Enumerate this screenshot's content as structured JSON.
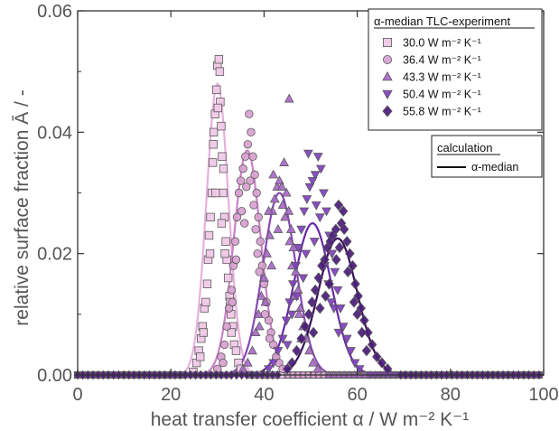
{
  "chart_data": {
    "type": "scatter",
    "title": "",
    "xlabel": "heat transfer coefficient α / W m⁻² K⁻¹",
    "ylabel": "relative surface fraction Ā / -",
    "xlim": [
      0,
      100
    ],
    "ylim": [
      0,
      0.06
    ],
    "x_ticks": [
      "0",
      "20",
      "40",
      "60",
      "80",
      "100"
    ],
    "y_ticks": [
      "0.00",
      "0.02",
      "0.04",
      "0.06"
    ],
    "grid": false,
    "legend_experiment": {
      "title": "α-median TLC-experiment",
      "placement": "top-right"
    },
    "legend_calculation": {
      "title": "calculation",
      "entry": "α-median",
      "placement": "right"
    },
    "series": [
      {
        "name": "30.0 W m⁻² K⁻¹",
        "marker": "square",
        "color": "#f0c8e6",
        "curve": {
          "mean": 30.0,
          "sigma": 2.35,
          "peak": 0.048,
          "color": "#e8b0dc"
        },
        "points": [
          [
            24.8,
            0.0005
          ],
          [
            25.5,
            0.002
          ],
          [
            26.0,
            0.004
          ],
          [
            26.5,
            0.006
          ],
          [
            26.8,
            0.008
          ],
          [
            27.2,
            0.011
          ],
          [
            27.5,
            0.012
          ],
          [
            27.8,
            0.015
          ],
          [
            28.0,
            0.019
          ],
          [
            28.2,
            0.023
          ],
          [
            28.5,
            0.026
          ],
          [
            28.8,
            0.03
          ],
          [
            29.0,
            0.035
          ],
          [
            29.2,
            0.04
          ],
          [
            29.5,
            0.043
          ],
          [
            29.8,
            0.047
          ],
          [
            30.0,
            0.051
          ],
          [
            30.3,
            0.052
          ],
          [
            30.5,
            0.05
          ],
          [
            30.6,
            0.045
          ],
          [
            30.8,
            0.041
          ],
          [
            31.0,
            0.036
          ],
          [
            31.2,
            0.03
          ],
          [
            31.5,
            0.026
          ],
          [
            31.8,
            0.022
          ],
          [
            32.0,
            0.019
          ],
          [
            32.3,
            0.016
          ],
          [
            32.6,
            0.013
          ],
          [
            32.9,
            0.01
          ],
          [
            33.3,
            0.008
          ],
          [
            33.6,
            0.005
          ],
          [
            34.0,
            0.004
          ],
          [
            34.5,
            0.002
          ],
          [
            35.0,
            0.001
          ],
          [
            28.4,
            0.02
          ],
          [
            29.6,
            0.03
          ],
          [
            30.9,
            0.025
          ],
          [
            27.0,
            0.007
          ],
          [
            31.6,
            0.02
          ],
          [
            32.8,
            0.012
          ],
          [
            26.3,
            0.003
          ],
          [
            29.1,
            0.038
          ],
          [
            30.1,
            0.044
          ],
          [
            31.3,
            0.034
          ],
          [
            33.0,
            0.007
          ]
        ]
      },
      {
        "name": "36.4 W m⁻² K⁻¹",
        "marker": "circle",
        "color": "#d8a0d0",
        "curve": {
          "mean": 36.4,
          "sigma": 2.9,
          "peak": 0.037,
          "color": "#cc80c8"
        },
        "points": [
          [
            30.0,
            0.001
          ],
          [
            30.8,
            0.003
          ],
          [
            31.5,
            0.005
          ],
          [
            32.0,
            0.008
          ],
          [
            32.5,
            0.011
          ],
          [
            33.0,
            0.014
          ],
          [
            33.4,
            0.018
          ],
          [
            33.8,
            0.022
          ],
          [
            34.2,
            0.026
          ],
          [
            34.6,
            0.03
          ],
          [
            35.0,
            0.032
          ],
          [
            35.5,
            0.034
          ],
          [
            36.0,
            0.036
          ],
          [
            36.5,
            0.038
          ],
          [
            36.8,
            0.043
          ],
          [
            37.2,
            0.04
          ],
          [
            37.6,
            0.036
          ],
          [
            38.0,
            0.033
          ],
          [
            38.4,
            0.03
          ],
          [
            38.8,
            0.026
          ],
          [
            39.2,
            0.022
          ],
          [
            39.6,
            0.018
          ],
          [
            40.0,
            0.015
          ],
          [
            40.5,
            0.012
          ],
          [
            41.0,
            0.009
          ],
          [
            41.5,
            0.007
          ],
          [
            42.0,
            0.005
          ],
          [
            42.6,
            0.003
          ],
          [
            43.2,
            0.002
          ],
          [
            44.0,
            0.001
          ],
          [
            34.0,
            0.019
          ],
          [
            35.2,
            0.027
          ],
          [
            37.0,
            0.032
          ],
          [
            38.2,
            0.024
          ],
          [
            39.0,
            0.017
          ],
          [
            36.2,
            0.031
          ],
          [
            33.2,
            0.012
          ],
          [
            40.2,
            0.01
          ],
          [
            37.8,
            0.028
          ],
          [
            35.8,
            0.025
          ],
          [
            41.2,
            0.006
          ],
          [
            31.2,
            0.002
          ],
          [
            38.6,
            0.02
          ]
        ]
      },
      {
        "name": "43.3 W m⁻² K⁻¹",
        "marker": "triangle-up",
        "color": "#a868c8",
        "curve": {
          "mean": 43.3,
          "sigma": 3.5,
          "peak": 0.03,
          "color": "#8848b8"
        },
        "points": [
          [
            35.5,
            0.001
          ],
          [
            36.5,
            0.002
          ],
          [
            37.5,
            0.004
          ],
          [
            38.2,
            0.007
          ],
          [
            38.8,
            0.01
          ],
          [
            39.4,
            0.013
          ],
          [
            40.0,
            0.016
          ],
          [
            40.6,
            0.02
          ],
          [
            41.2,
            0.023
          ],
          [
            41.8,
            0.027
          ],
          [
            42.3,
            0.029
          ],
          [
            42.8,
            0.031
          ],
          [
            43.3,
            0.032
          ],
          [
            43.8,
            0.031
          ],
          [
            44.3,
            0.035
          ],
          [
            44.8,
            0.03
          ],
          [
            45.3,
            0.027
          ],
          [
            45.8,
            0.024
          ],
          [
            46.3,
            0.021
          ],
          [
            46.8,
            0.017
          ],
          [
            47.3,
            0.014
          ],
          [
            47.8,
            0.011
          ],
          [
            48.4,
            0.008
          ],
          [
            49.0,
            0.006
          ],
          [
            49.7,
            0.004
          ],
          [
            50.5,
            0.002
          ],
          [
            51.5,
            0.001
          ],
          [
            45.4,
            0.0455
          ],
          [
            40.3,
            0.012
          ],
          [
            41.6,
            0.018
          ],
          [
            43.0,
            0.024
          ],
          [
            44.5,
            0.026
          ],
          [
            46.0,
            0.018
          ],
          [
            47.5,
            0.01
          ],
          [
            42.0,
            0.033
          ],
          [
            39.0,
            0.008
          ],
          [
            44.0,
            0.028
          ],
          [
            45.5,
            0.022
          ],
          [
            48.0,
            0.006
          ],
          [
            41.0,
            0.027
          ],
          [
            46.5,
            0.013
          ]
        ]
      },
      {
        "name": "50.4 W m⁻² K⁻¹",
        "marker": "triangle-down",
        "color": "#7f3fc0",
        "curve": {
          "mean": 50.4,
          "sigma": 4.0,
          "peak": 0.025,
          "color": "#6a2aa8"
        },
        "points": [
          [
            41.0,
            0.001
          ],
          [
            42.0,
            0.002
          ],
          [
            43.0,
            0.004
          ],
          [
            44.0,
            0.006
          ],
          [
            44.8,
            0.009
          ],
          [
            45.5,
            0.012
          ],
          [
            46.2,
            0.015
          ],
          [
            46.8,
            0.018
          ],
          [
            47.4,
            0.021
          ],
          [
            48.0,
            0.024
          ],
          [
            48.6,
            0.027
          ],
          [
            49.2,
            0.029
          ],
          [
            49.8,
            0.031
          ],
          [
            50.4,
            0.032
          ],
          [
            51.0,
            0.033
          ],
          [
            51.6,
            0.036
          ],
          [
            52.2,
            0.034
          ],
          [
            52.8,
            0.03
          ],
          [
            53.4,
            0.027
          ],
          [
            54.0,
            0.023
          ],
          [
            54.6,
            0.02
          ],
          [
            55.2,
            0.017
          ],
          [
            55.8,
            0.014
          ],
          [
            56.4,
            0.011
          ],
          [
            57.0,
            0.008
          ],
          [
            57.8,
            0.006
          ],
          [
            58.6,
            0.004
          ],
          [
            59.5,
            0.002
          ],
          [
            60.5,
            0.001
          ],
          [
            49.5,
            0.0365
          ],
          [
            52.0,
            0.026
          ],
          [
            46.0,
            0.01
          ],
          [
            48.4,
            0.016
          ],
          [
            50.8,
            0.022
          ],
          [
            53.0,
            0.018
          ],
          [
            55.0,
            0.011
          ],
          [
            47.0,
            0.013
          ],
          [
            51.2,
            0.028
          ],
          [
            53.8,
            0.015
          ],
          [
            56.0,
            0.007
          ],
          [
            45.0,
            0.005
          ],
          [
            49.0,
            0.02
          ],
          [
            54.4,
            0.012
          ]
        ]
      },
      {
        "name": "55.8 W m⁻² K⁻¹",
        "marker": "diamond",
        "color": "#4a1a7a",
        "curve": {
          "mean": 55.8,
          "sigma": 4.2,
          "peak": 0.0225,
          "color": "#3a0f5e"
        },
        "points": [
          [
            45.0,
            0.001
          ],
          [
            46.0,
            0.002
          ],
          [
            47.0,
            0.004
          ],
          [
            48.0,
            0.006
          ],
          [
            48.8,
            0.008
          ],
          [
            49.6,
            0.01
          ],
          [
            50.3,
            0.012
          ],
          [
            51.0,
            0.014
          ],
          [
            51.7,
            0.016
          ],
          [
            52.4,
            0.018
          ],
          [
            53.0,
            0.019
          ],
          [
            53.6,
            0.021
          ],
          [
            54.2,
            0.022
          ],
          [
            54.8,
            0.023
          ],
          [
            55.4,
            0.024
          ],
          [
            56.0,
            0.028
          ],
          [
            56.6,
            0.025
          ],
          [
            57.2,
            0.024
          ],
          [
            57.8,
            0.022
          ],
          [
            58.4,
            0.02
          ],
          [
            59.0,
            0.018
          ],
          [
            59.6,
            0.015
          ],
          [
            60.2,
            0.013
          ],
          [
            60.8,
            0.011
          ],
          [
            61.5,
            0.009
          ],
          [
            62.3,
            0.007
          ],
          [
            63.2,
            0.005
          ],
          [
            64.2,
            0.003
          ],
          [
            65.3,
            0.002
          ],
          [
            66.5,
            0.001
          ],
          [
            57.0,
            0.027
          ],
          [
            54.0,
            0.015
          ],
          [
            55.5,
            0.019
          ],
          [
            58.0,
            0.017
          ],
          [
            52.0,
            0.011
          ],
          [
            60.0,
            0.01
          ],
          [
            56.2,
            0.021
          ],
          [
            53.2,
            0.013
          ],
          [
            59.3,
            0.012
          ],
          [
            61.0,
            0.007
          ],
          [
            50.6,
            0.007
          ],
          [
            62.0,
            0.004
          ]
        ]
      }
    ]
  }
}
